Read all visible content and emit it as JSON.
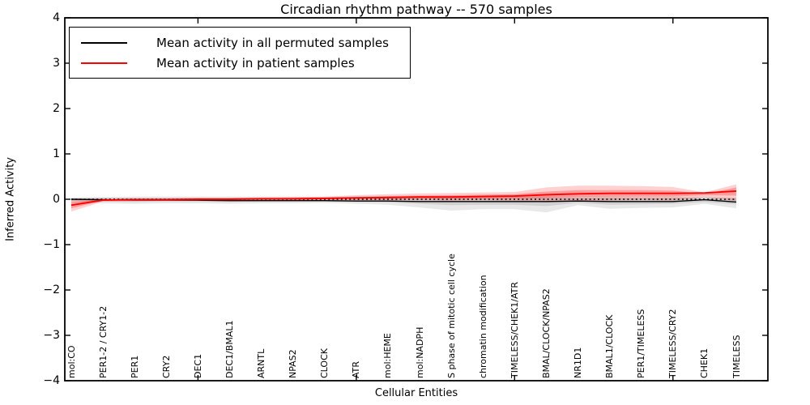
{
  "accent_colors": {
    "patient_red": "#ff0000",
    "permuted_black": "#000000",
    "background": "#ffffff"
  },
  "chart_data": {
    "type": "line",
    "title": "Circadian rhythm pathway -- 570 samples",
    "xlabel": "Cellular Entities",
    "ylabel": "Inferred Activity",
    "ylim": [
      -4,
      4
    ],
    "ytick_labels": [
      "4",
      "3",
      "2",
      "1",
      "0",
      "−1",
      "−2",
      "−3",
      "−4"
    ],
    "ytick_values": [
      4,
      3,
      2,
      1,
      0,
      -1,
      -2,
      -3,
      -4
    ],
    "x_major_tick_indices": [
      4,
      9,
      14,
      19
    ],
    "grid": false,
    "legend_position": "upper left",
    "zero_line": {
      "shown": true,
      "value": 0,
      "style": "dotted",
      "color": "#000000"
    },
    "categories": [
      "mol:CO",
      "PER1-2 / CRY1-2",
      "PER1",
      "CRY2",
      "DEC1",
      "DEC1/BMAL1",
      "ARNTL",
      "NPAS2",
      "CLOCK",
      "ATR",
      "mol:HEME",
      "mol:NADPH",
      "S phase of mitotic cell cycle",
      "chromatin modification",
      "TIMELESS/CHEK1/ATR",
      "BMAL/CLOCK/NPAS2",
      "NR1D1",
      "BMAL1/CLOCK",
      "PER1/TIMELESS",
      "TIMELESS/CRY2",
      "CHEK1",
      "TIMELESS"
    ],
    "series": [
      {
        "name": "Mean activity in all permuted samples",
        "color": "#000000",
        "band_color": "#000000",
        "values": [
          0.0,
          -0.01,
          -0.02,
          -0.02,
          -0.02,
          -0.03,
          -0.03,
          -0.03,
          -0.03,
          -0.04,
          -0.04,
          -0.05,
          -0.05,
          -0.05,
          -0.05,
          -0.05,
          -0.04,
          -0.05,
          -0.05,
          -0.05,
          -0.01,
          -0.06
        ],
        "band_outer_low": [
          -0.06,
          -0.09,
          -0.1,
          -0.09,
          -0.09,
          -0.1,
          -0.09,
          -0.09,
          -0.08,
          -0.1,
          -0.12,
          -0.18,
          -0.25,
          -0.22,
          -0.22,
          -0.29,
          -0.13,
          -0.21,
          -0.19,
          -0.18,
          -0.1,
          -0.2
        ],
        "band_outer_high": [
          0.04,
          0.05,
          0.06,
          0.06,
          0.06,
          0.06,
          0.06,
          0.06,
          0.05,
          0.06,
          0.06,
          0.07,
          0.07,
          0.07,
          0.07,
          0.07,
          0.06,
          0.07,
          0.06,
          0.06,
          0.06,
          0.04
        ],
        "band_inner_low": [
          -0.03,
          -0.05,
          -0.06,
          -0.05,
          -0.05,
          -0.06,
          -0.05,
          -0.05,
          -0.05,
          -0.06,
          -0.07,
          -0.1,
          -0.13,
          -0.12,
          -0.12,
          -0.15,
          -0.08,
          -0.12,
          -0.11,
          -0.1,
          -0.06,
          -0.11
        ],
        "band_inner_high": [
          0.02,
          0.03,
          0.03,
          0.03,
          0.03,
          0.03,
          0.03,
          0.03,
          0.03,
          0.03,
          0.03,
          0.04,
          0.04,
          0.04,
          0.04,
          0.04,
          0.03,
          0.04,
          0.03,
          0.03,
          0.03,
          0.02
        ]
      },
      {
        "name": "Mean activity in patient samples",
        "color": "#ff0000",
        "band_color": "#ff0000",
        "values": [
          -0.13,
          -0.02,
          -0.01,
          -0.01,
          0.0,
          0.0,
          0.01,
          0.01,
          0.02,
          0.03,
          0.04,
          0.05,
          0.05,
          0.06,
          0.07,
          0.1,
          0.12,
          0.13,
          0.13,
          0.13,
          0.14,
          0.18
        ],
        "band_outer_low": [
          -0.27,
          -0.05,
          -0.04,
          -0.03,
          -0.03,
          -0.02,
          -0.02,
          -0.02,
          -0.01,
          -0.02,
          -0.02,
          -0.02,
          -0.03,
          -0.02,
          -0.04,
          -0.07,
          -0.05,
          -0.03,
          -0.02,
          -0.03,
          0.04,
          -0.04
        ],
        "band_outer_high": [
          0.0,
          0.01,
          0.02,
          0.02,
          0.03,
          0.03,
          0.04,
          0.05,
          0.06,
          0.09,
          0.11,
          0.13,
          0.14,
          0.15,
          0.16,
          0.26,
          0.3,
          0.3,
          0.29,
          0.27,
          0.15,
          0.33
        ],
        "band_inner_low": [
          -0.2,
          -0.03,
          -0.02,
          -0.02,
          -0.01,
          -0.01,
          0.0,
          0.0,
          0.01,
          0.01,
          0.01,
          0.02,
          0.01,
          0.02,
          0.02,
          0.03,
          0.05,
          0.06,
          0.06,
          0.06,
          0.09,
          0.08
        ],
        "band_inner_high": [
          -0.06,
          0.0,
          0.01,
          0.01,
          0.01,
          0.02,
          0.02,
          0.03,
          0.04,
          0.05,
          0.07,
          0.08,
          0.09,
          0.1,
          0.11,
          0.17,
          0.2,
          0.2,
          0.2,
          0.19,
          0.12,
          0.26
        ]
      }
    ]
  }
}
